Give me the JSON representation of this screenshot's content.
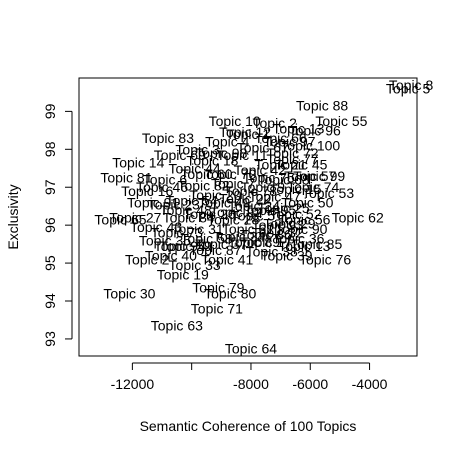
{
  "chart_data": {
    "type": "scatter",
    "title": "",
    "xlabel": "Semantic Coherence of 100 Topics",
    "ylabel": "Exclusivity",
    "xlim": [
      -13800,
      -2400
    ],
    "ylim": [
      92.55,
      99.88
    ],
    "x_ticks": [
      -12000,
      -10000,
      -8000,
      -6000,
      -4000
    ],
    "x_tick_labels": [
      "-12000",
      "",
      "-8000",
      "-6000",
      "-4000"
    ],
    "y_ticks": [
      93,
      94,
      95,
      96,
      97,
      98,
      99
    ],
    "y_tick_labels": [
      "93",
      "94",
      "95",
      "96",
      "97",
      "98",
      "99"
    ],
    "grid": false,
    "legend": "none",
    "points": [
      {
        "label": "Topic 55",
        "x": -4950,
        "y": 98.75
      },
      {
        "label": "Topic 88",
        "x": -5600,
        "y": 99.15
      },
      {
        "label": "Topic 8",
        "x": -2600,
        "y": 99.7
      },
      {
        "label": "Topic 5",
        "x": -2700,
        "y": 99.6
      },
      {
        "label": "Topic 10",
        "x": -8550,
        "y": 98.75
      },
      {
        "label": "Topic 2",
        "x": -7200,
        "y": 98.7
      },
      {
        "label": "Topic 96",
        "x": -5850,
        "y": 98.5
      },
      {
        "label": "Topic 13",
        "x": -6400,
        "y": 98.55
      },
      {
        "label": "Topic 100",
        "x": -6000,
        "y": 98.1
      },
      {
        "label": "Topic 83",
        "x": -10800,
        "y": 98.3
      },
      {
        "label": "Topic 3",
        "x": -9800,
        "y": 98.0
      },
      {
        "label": "Topic 72",
        "x": -6600,
        "y": 97.9
      },
      {
        "label": "Topic 14",
        "x": -11800,
        "y": 97.65
      },
      {
        "label": "Topic 81",
        "x": -12200,
        "y": 97.25
      },
      {
        "label": "Topic 60",
        "x": -9500,
        "y": 97.35
      },
      {
        "label": "Topic 57",
        "x": -6000,
        "y": 97.3
      },
      {
        "label": "Topic 53",
        "x": -5400,
        "y": 96.85
      },
      {
        "label": "Topic 95",
        "x": -7350,
        "y": 96.4
      },
      {
        "label": "Topic 62",
        "x": -4400,
        "y": 96.2
      },
      {
        "label": "Topic 54",
        "x": -10000,
        "y": 96.65
      },
      {
        "label": "Topic 65",
        "x": -12400,
        "y": 96.15
      },
      {
        "label": "Topic 43",
        "x": -11200,
        "y": 95.95
      },
      {
        "label": "Topic 73",
        "x": -10500,
        "y": 95.8
      },
      {
        "label": "Topic 17",
        "x": -7500,
        "y": 95.55
      },
      {
        "label": "Topic 13",
        "x": -6200,
        "y": 95.45
      },
      {
        "label": "Topic 76",
        "x": -5500,
        "y": 95.1
      },
      {
        "label": "Topic 59",
        "x": -10200,
        "y": 95.45
      },
      {
        "label": "Topic 2",
        "x": -11500,
        "y": 95.1
      },
      {
        "label": "Topic 33",
        "x": -9900,
        "y": 94.95
      },
      {
        "label": "Topic 19",
        "x": -10300,
        "y": 94.7
      },
      {
        "label": "Topic 79",
        "x": -9100,
        "y": 94.35
      },
      {
        "label": "Topic 80",
        "x": -8700,
        "y": 94.2
      },
      {
        "label": "Topic 30",
        "x": -12100,
        "y": 94.2
      },
      {
        "label": "Topic 71",
        "x": -9150,
        "y": 93.8
      },
      {
        "label": "Topic 63",
        "x": -10500,
        "y": 93.35
      },
      {
        "label": "Topic 64",
        "x": -8000,
        "y": 92.75
      },
      {
        "label": "Topic 12",
        "x": -8200,
        "y": 98.45
      },
      {
        "label": "Topic 4",
        "x": -8800,
        "y": 98.2
      },
      {
        "label": "Topic 11",
        "x": -8300,
        "y": 97.85
      },
      {
        "label": "Topic 18",
        "x": -9300,
        "y": 97.7
      },
      {
        "label": "Topic 21",
        "x": -7000,
        "y": 97.6
      },
      {
        "label": "Topic 6",
        "x": -10900,
        "y": 97.2
      },
      {
        "label": "Topic 7",
        "x": -8600,
        "y": 97.1
      },
      {
        "label": "Topic 9",
        "x": -7600,
        "y": 97.0
      },
      {
        "label": "Topic 15",
        "x": -6500,
        "y": 96.95
      },
      {
        "label": "Topic 16",
        "x": -11500,
        "y": 96.9
      },
      {
        "label": "Topic 20",
        "x": -9200,
        "y": 96.8
      },
      {
        "label": "Topic 22",
        "x": -8200,
        "y": 96.7
      },
      {
        "label": "Topic 23",
        "x": -10600,
        "y": 96.55
      },
      {
        "label": "Topic 24",
        "x": -7900,
        "y": 96.5
      },
      {
        "label": "Topic 25",
        "x": -6900,
        "y": 96.45
      },
      {
        "label": "Topic 26",
        "x": -9400,
        "y": 96.3
      },
      {
        "label": "Topic 27",
        "x": -11900,
        "y": 96.2
      },
      {
        "label": "Topic 28",
        "x": -8600,
        "y": 96.15
      },
      {
        "label": "Topic 29",
        "x": -6700,
        "y": 96.05
      },
      {
        "label": "Topic 31",
        "x": -9800,
        "y": 95.9
      },
      {
        "label": "Topic 32",
        "x": -7100,
        "y": 95.8
      },
      {
        "label": "Topic 34",
        "x": -8400,
        "y": 95.7
      },
      {
        "label": "Topic 35",
        "x": -10900,
        "y": 95.6
      },
      {
        "label": "Topic 36",
        "x": -6400,
        "y": 95.65
      },
      {
        "label": "Topic 37",
        "x": -9000,
        "y": 95.5
      },
      {
        "label": "Topic 38",
        "x": -7300,
        "y": 95.3
      },
      {
        "label": "Topic 39",
        "x": -6800,
        "y": 95.2
      },
      {
        "label": "Topic 40",
        "x": -10700,
        "y": 95.2
      },
      {
        "label": "Topic 41",
        "x": -8800,
        "y": 95.1
      },
      {
        "label": "Topic 42",
        "x": -7700,
        "y": 97.45
      },
      {
        "label": "Topic 44",
        "x": -9900,
        "y": 97.5
      },
      {
        "label": "Topic 45",
        "x": -6300,
        "y": 97.6
      },
      {
        "label": "Topic 46",
        "x": -11000,
        "y": 97.0
      },
      {
        "label": "Topic 47",
        "x": -7200,
        "y": 96.75
      },
      {
        "label": "Topic 48",
        "x": -10200,
        "y": 96.4
      },
      {
        "label": "Topic 49",
        "x": -8900,
        "y": 96.6
      },
      {
        "label": "Topic 50",
        "x": -6100,
        "y": 96.6
      },
      {
        "label": "Topic 51",
        "x": -7800,
        "y": 96.25
      },
      {
        "label": "Topic 52",
        "x": -6500,
        "y": 96.3
      },
      {
        "label": "Topic 56",
        "x": -6200,
        "y": 96.15
      },
      {
        "label": "Topic 58",
        "x": -9500,
        "y": 95.65
      },
      {
        "label": "Topic 61",
        "x": -8100,
        "y": 95.9
      },
      {
        "label": "Topic 66",
        "x": -7000,
        "y": 98.3
      },
      {
        "label": "Topic 67",
        "x": -7600,
        "y": 98.05
      },
      {
        "label": "Topic 68",
        "x": -6900,
        "y": 97.2
      },
      {
        "label": "Topic 69",
        "x": -10400,
        "y": 97.85
      },
      {
        "label": "Topic 70",
        "x": -8700,
        "y": 97.35
      },
      {
        "label": "Topic 74",
        "x": -5900,
        "y": 97.0
      },
      {
        "label": "Topic 75",
        "x": -7400,
        "y": 97.25
      },
      {
        "label": "Topic 77",
        "x": -6600,
        "y": 97.75
      },
      {
        "label": "Topic 78",
        "x": -8000,
        "y": 96.9
      },
      {
        "label": "Topic 82",
        "x": -9600,
        "y": 97.05
      },
      {
        "label": "Topic 84",
        "x": -10100,
        "y": 96.2
      },
      {
        "label": "Topic 85",
        "x": -5800,
        "y": 95.5
      },
      {
        "label": "Topic 86",
        "x": -7500,
        "y": 95.75
      },
      {
        "label": "Topic 87",
        "x": -9200,
        "y": 95.35
      },
      {
        "label": "Topic 89",
        "x": -7900,
        "y": 95.55
      },
      {
        "label": "Topic 90",
        "x": -6300,
        "y": 95.9
      },
      {
        "label": "Topic 91",
        "x": -11300,
        "y": 96.6
      },
      {
        "label": "Topic 92",
        "x": -8500,
        "y": 96.35
      },
      {
        "label": "Topic 93",
        "x": -7100,
        "y": 96.0
      },
      {
        "label": "Topic 94",
        "x": -10400,
        "y": 95.45
      },
      {
        "label": "Topic 97",
        "x": -6700,
        "y": 98.2
      },
      {
        "label": "Topic 98",
        "x": -9000,
        "y": 97.9
      },
      {
        "label": "Topic 99",
        "x": -5700,
        "y": 97.3
      },
      {
        "label": "Topic 1",
        "x": -8100,
        "y": 98.4
      }
    ]
  }
}
